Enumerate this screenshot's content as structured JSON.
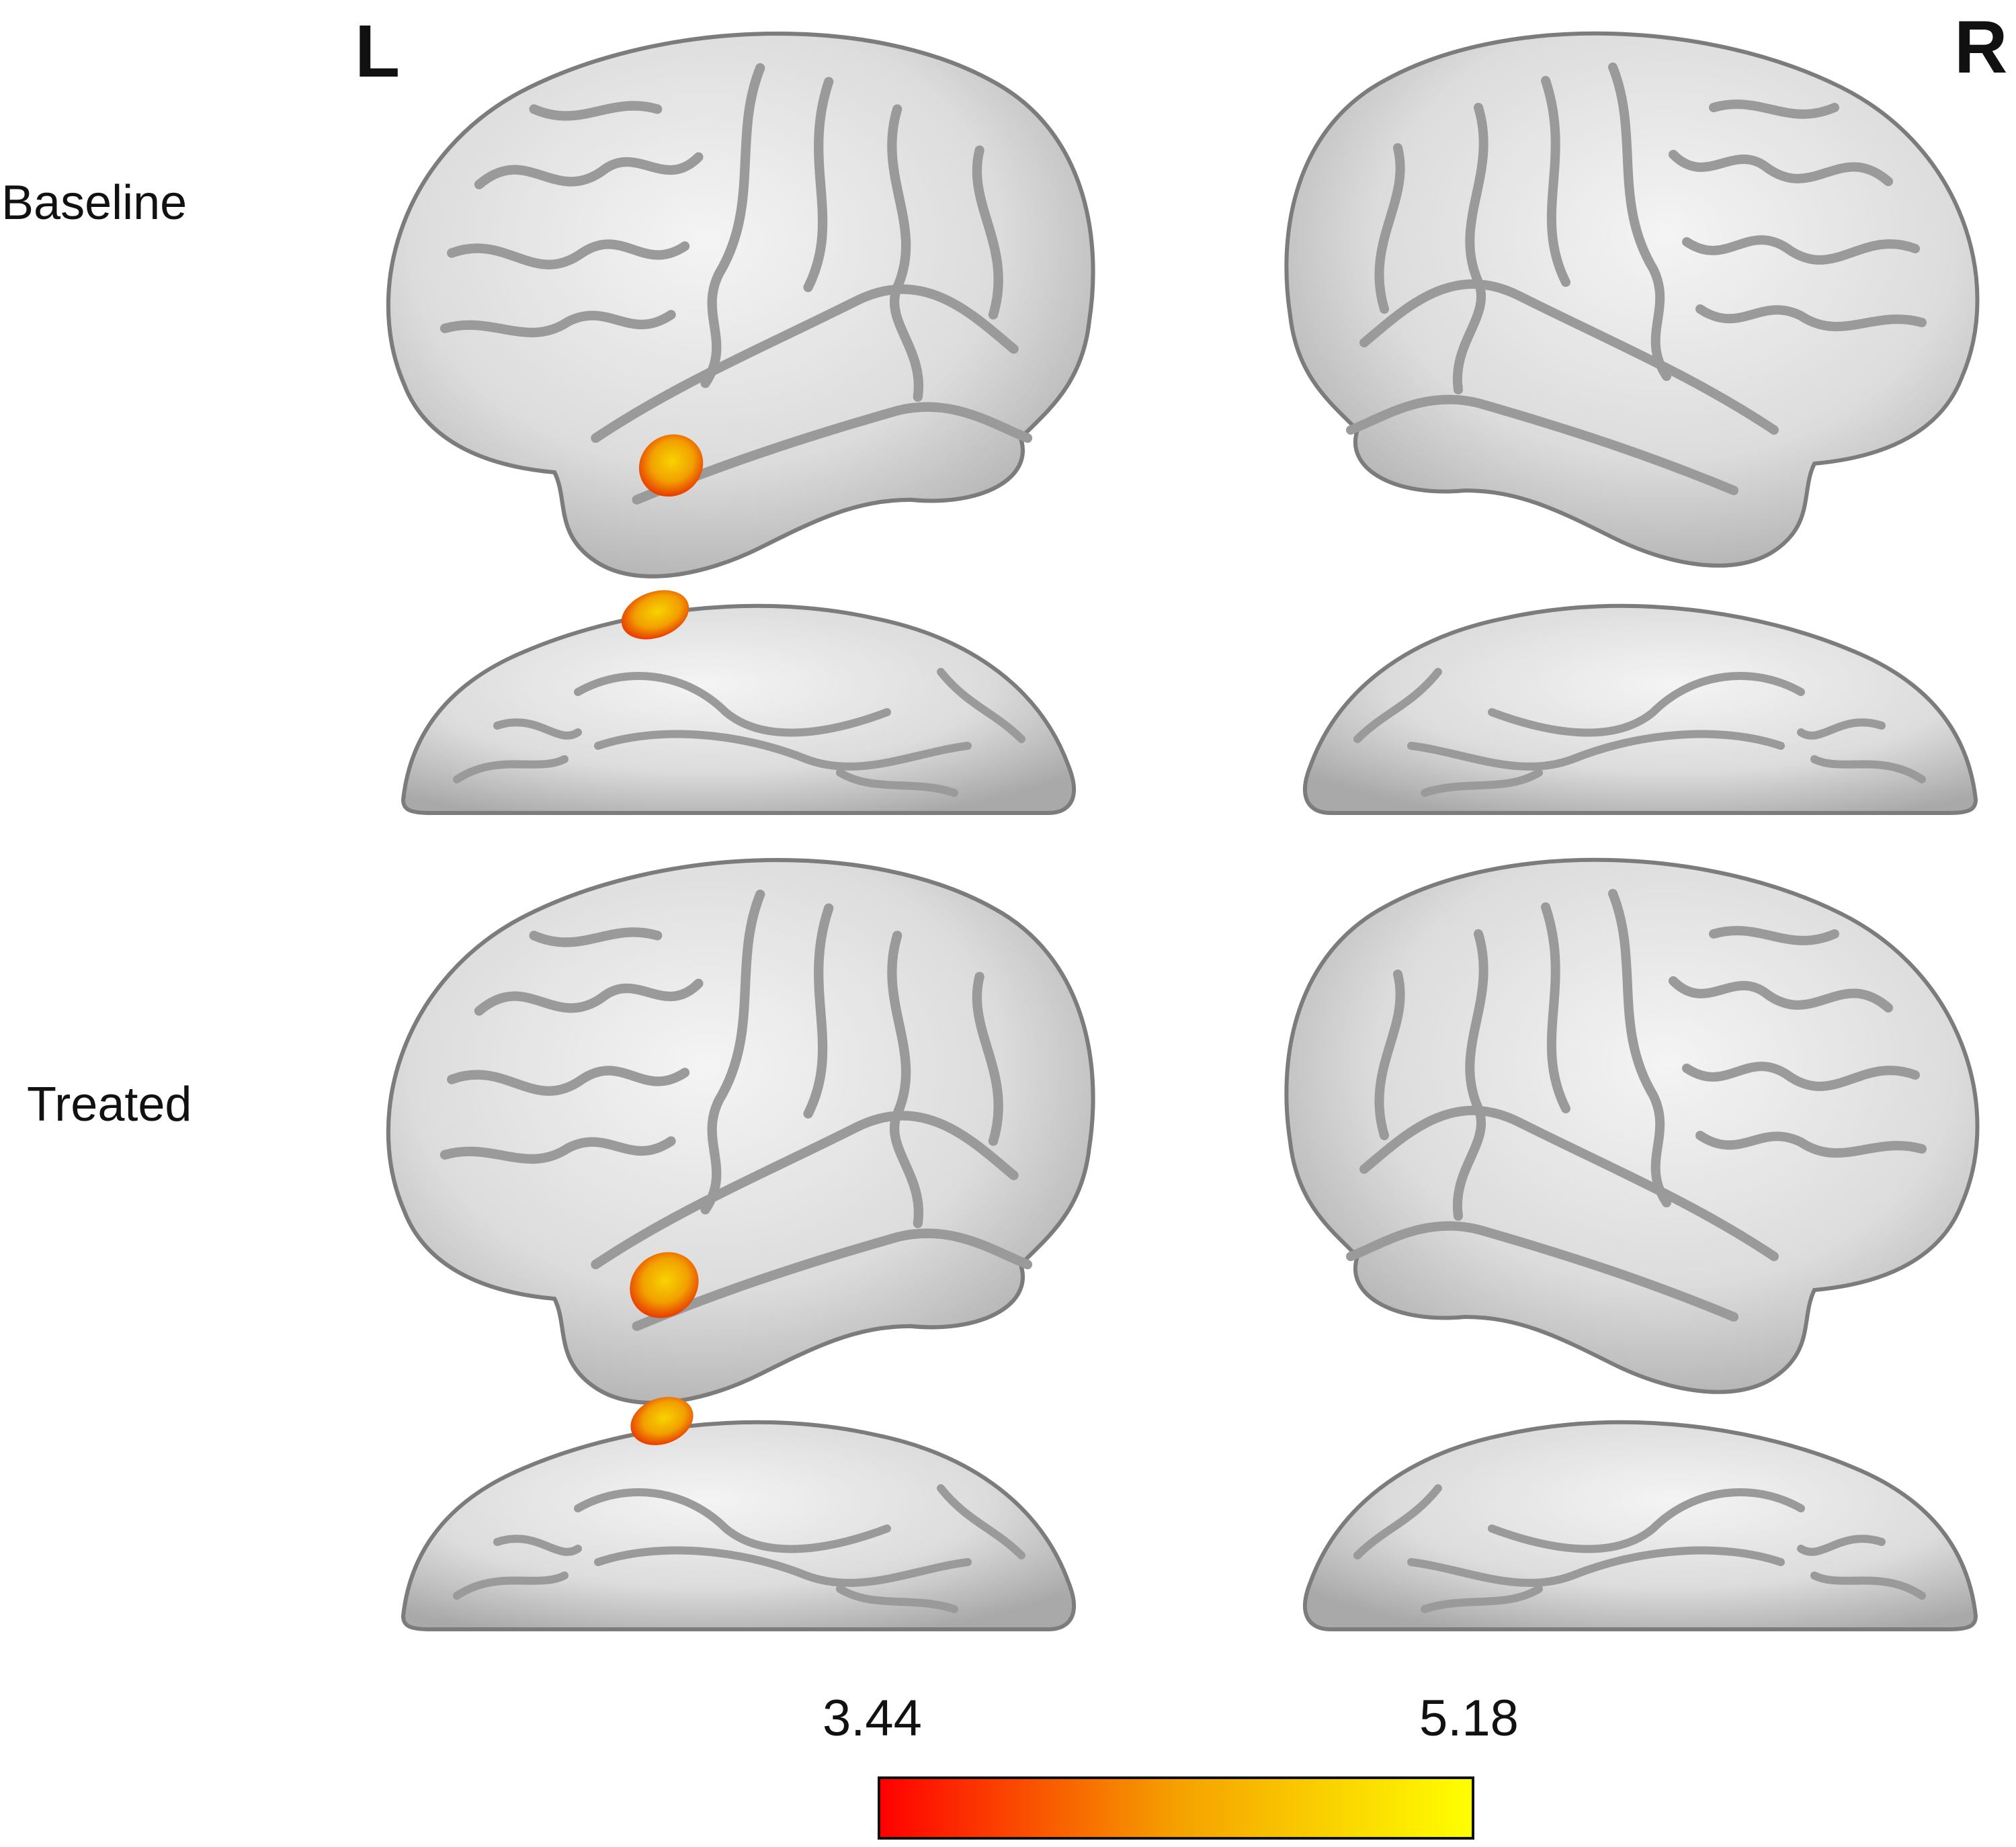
{
  "hemispheres": {
    "left_label": "L",
    "right_label": "R"
  },
  "rows": {
    "baseline_label": "Baseline",
    "treated_label": "Treated"
  },
  "colorbar": {
    "min_label": "3.44",
    "max_label": "5.18",
    "min_color": "#ff0000",
    "mid_color": "#f5a000",
    "max_color": "#ffff00"
  },
  "colors": {
    "brain_surface": "#e4e4e4",
    "brain_shadow": "#8f8f8f",
    "activation": "#f3a000"
  },
  "panels": [
    {
      "row": "baseline",
      "hemisphere": "left",
      "view": "lateral",
      "activation": true
    },
    {
      "row": "baseline",
      "hemisphere": "right",
      "view": "lateral",
      "activation": false
    },
    {
      "row": "baseline",
      "hemisphere": "left",
      "view": "medial",
      "activation": true
    },
    {
      "row": "baseline",
      "hemisphere": "right",
      "view": "medial",
      "activation": false
    },
    {
      "row": "treated",
      "hemisphere": "left",
      "view": "lateral",
      "activation": true
    },
    {
      "row": "treated",
      "hemisphere": "right",
      "view": "lateral",
      "activation": false
    },
    {
      "row": "treated",
      "hemisphere": "left",
      "view": "medial",
      "activation": true
    },
    {
      "row": "treated",
      "hemisphere": "right",
      "view": "medial",
      "activation": false
    }
  ]
}
